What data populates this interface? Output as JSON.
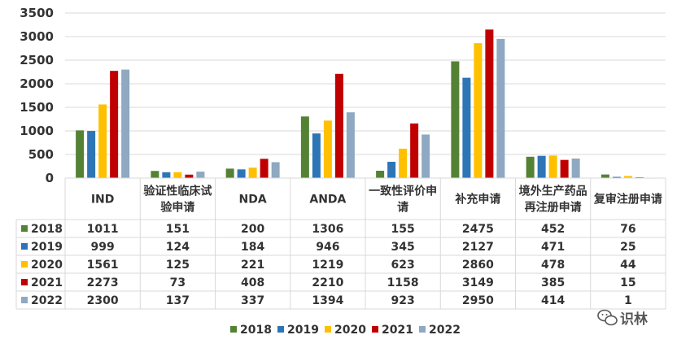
{
  "chart_data": {
    "type": "bar",
    "categories": [
      "IND",
      "验证性临床试验申请",
      "NDA",
      "ANDA",
      "一致性评价申请",
      "补充申请",
      "境外生产药品再注册申请",
      "复审注册申请"
    ],
    "category_lines": [
      [
        "IND"
      ],
      [
        "验证性临床试",
        "验申请"
      ],
      [
        "NDA"
      ],
      [
        "ANDA"
      ],
      [
        "一致性评价申",
        "请"
      ],
      [
        "补充申请"
      ],
      [
        "境外生产药品",
        "再注册申请"
      ],
      [
        "复审注册申请"
      ]
    ],
    "series": [
      {
        "name": "2018",
        "color": "#548235",
        "values": [
          1011,
          151,
          200,
          1306,
          155,
          2475,
          452,
          76
        ]
      },
      {
        "name": "2019",
        "color": "#2E75B6",
        "values": [
          999,
          124,
          184,
          946,
          345,
          2127,
          471,
          25
        ]
      },
      {
        "name": "2020",
        "color": "#FFC000",
        "values": [
          1561,
          125,
          221,
          1219,
          623,
          2860,
          478,
          44
        ]
      },
      {
        "name": "2021",
        "color": "#C00000",
        "values": [
          2273,
          73,
          408,
          2210,
          1158,
          3149,
          385,
          15
        ]
      },
      {
        "name": "2022",
        "color": "#8EA9C1",
        "values": [
          2300,
          137,
          337,
          1394,
          923,
          2950,
          414,
          1
        ]
      }
    ],
    "y_ticks": [
      0,
      500,
      1000,
      1500,
      2000,
      2500,
      3000,
      3500
    ],
    "ylim": [
      0,
      3500
    ],
    "grid": true,
    "legend": "bottom",
    "data_table": true
  },
  "watermark": {
    "icon": "wechat-icon",
    "text": "识林"
  }
}
